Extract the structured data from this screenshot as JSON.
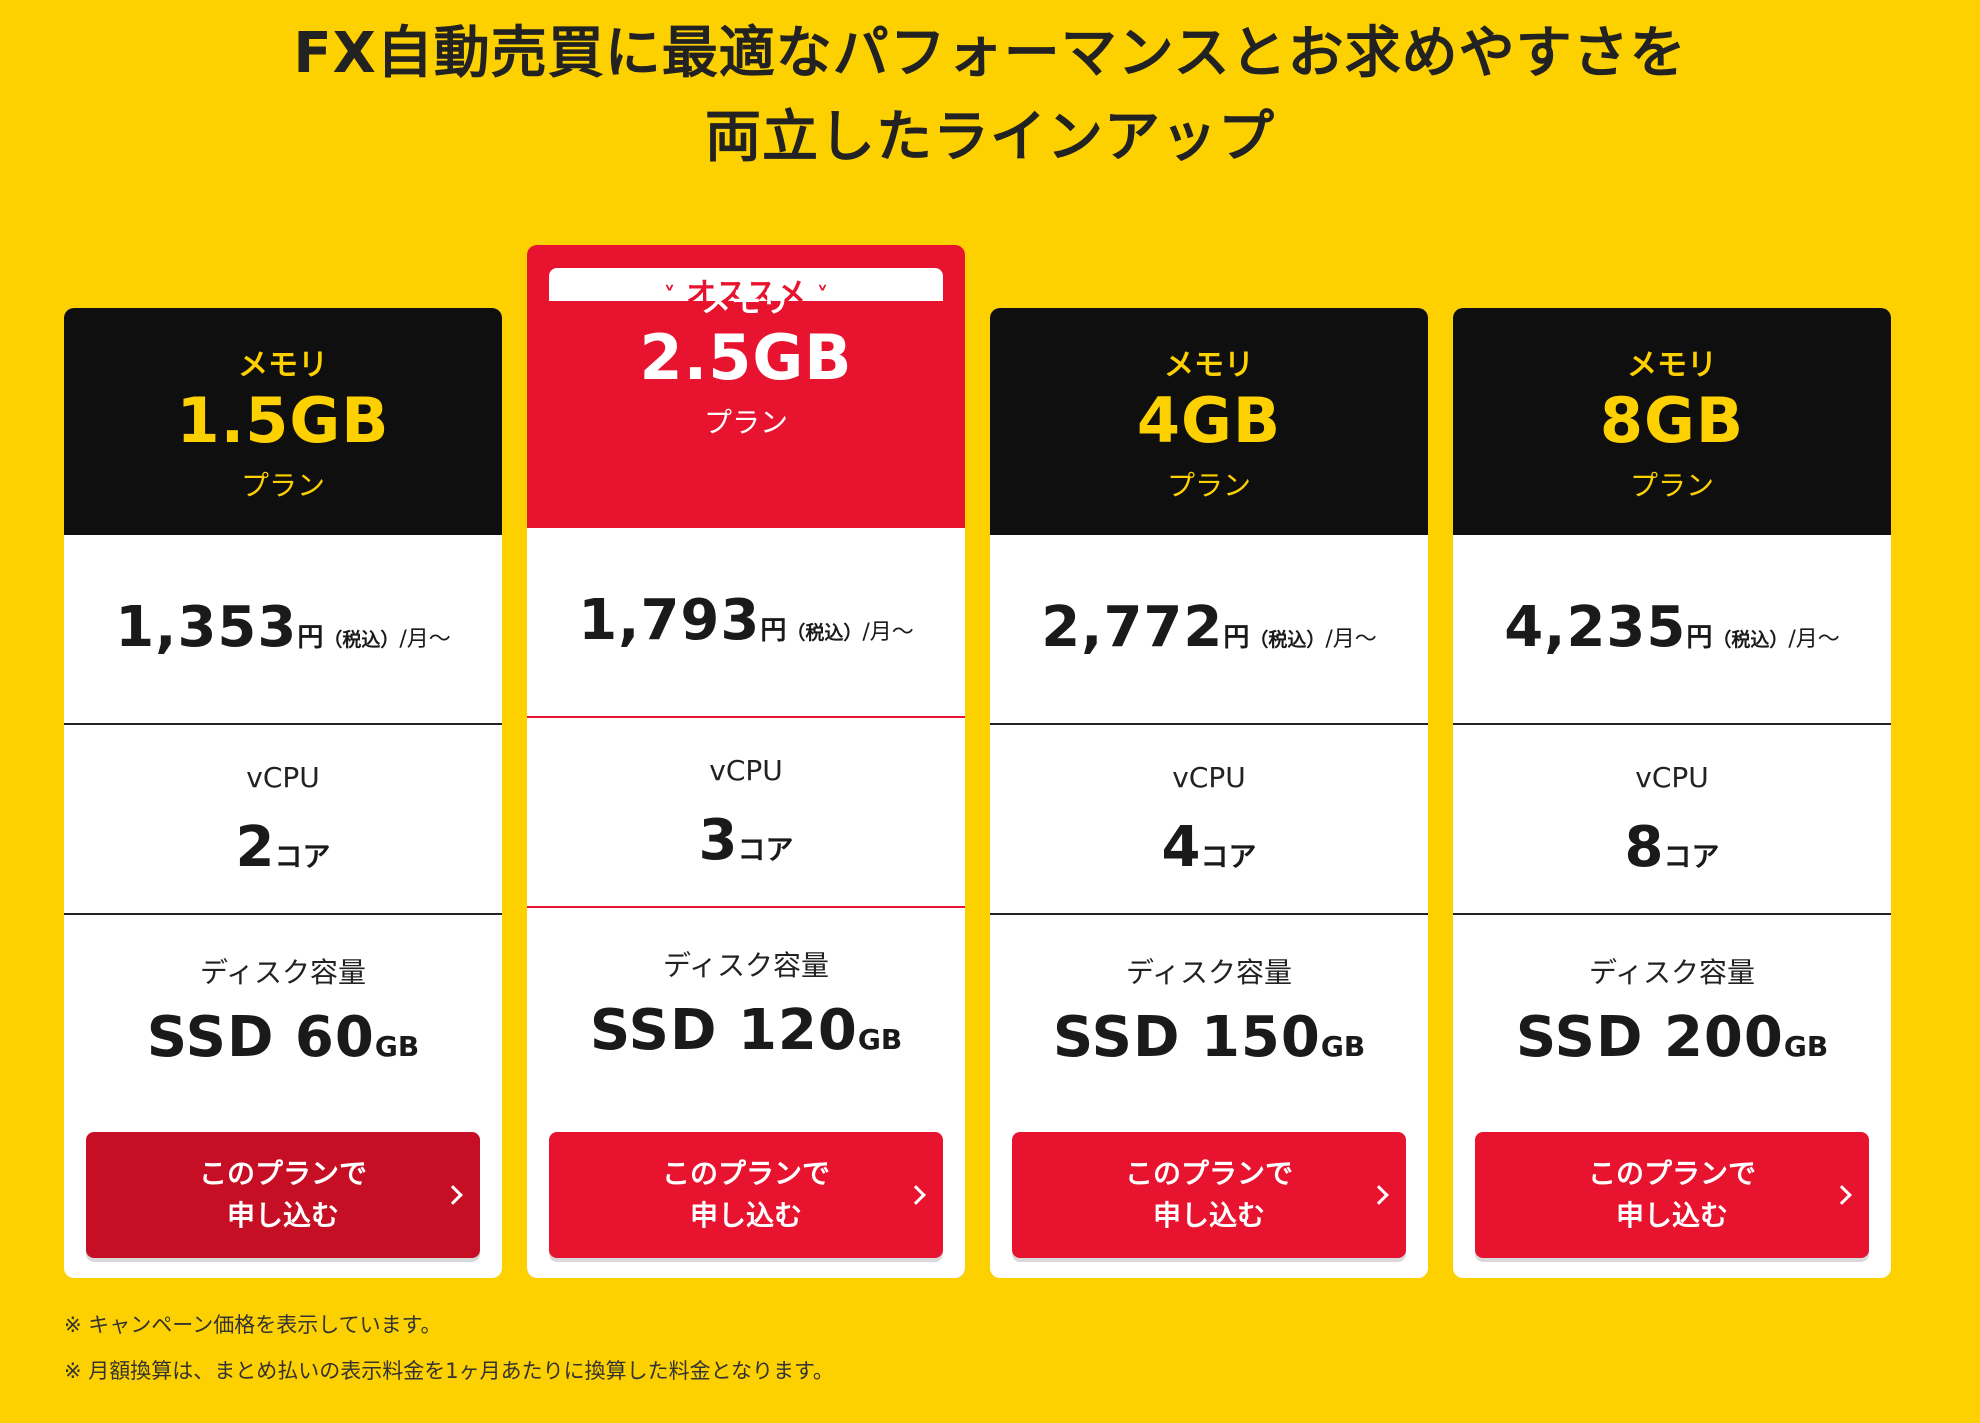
{
  "headline": {
    "line1": "FX自動売買に最適なパフォーマンスとお求めやすさを",
    "line2": "両立したラインアップ"
  },
  "recommend_badge": {
    "label": "オススメ",
    "icon": "double-chevron-down-icon",
    "color": "#e8132f"
  },
  "colors": {
    "background": "#fdd000",
    "accent_red": "#e8132f",
    "card_head_dark": "#0f0f0f",
    "mem_text_yellow": "#fdd000"
  },
  "labels": {
    "vcpu": "vCPU",
    "disk": "ディスク容量"
  },
  "plans": [
    {
      "mem_label": "メモリ",
      "mem_size": "1.5GB",
      "plan_word": "プラン",
      "price": "1,353",
      "yen": "円",
      "tax": "（税込）",
      "per": "/月～",
      "cpu": "2",
      "cpu_unit": "コア",
      "disk": "SSD 60",
      "disk_unit": "GB",
      "button_line1": "このプランで",
      "button_line2": "申し込む",
      "recommended": false
    },
    {
      "mem_label": "メモリ",
      "mem_size": "2.5GB",
      "plan_word": "プラン",
      "price": "1,793",
      "yen": "円",
      "tax": "（税込）",
      "per": "/月～",
      "cpu": "3",
      "cpu_unit": "コア",
      "disk": "SSD 120",
      "disk_unit": "GB",
      "button_line1": "このプランで",
      "button_line2": "申し込む",
      "recommended": true
    },
    {
      "mem_label": "メモリ",
      "mem_size": "4GB",
      "plan_word": "プラン",
      "price": "2,772",
      "yen": "円",
      "tax": "（税込）",
      "per": "/月～",
      "cpu": "4",
      "cpu_unit": "コア",
      "disk": "SSD 150",
      "disk_unit": "GB",
      "button_line1": "このプランで",
      "button_line2": "申し込む",
      "recommended": false
    },
    {
      "mem_label": "メモリ",
      "mem_size": "8GB",
      "plan_word": "プラン",
      "price": "4,235",
      "yen": "円",
      "tax": "（税込）",
      "per": "/月～",
      "cpu": "8",
      "cpu_unit": "コア",
      "disk": "SSD 200",
      "disk_unit": "GB",
      "button_line1": "このプランで",
      "button_line2": "申し込む",
      "recommended": false
    }
  ],
  "notes": [
    "※ キャンペーン価格を表示しています。",
    "※ 月額換算は、まとめ払いの表示料金を1ヶ月あたりに換算した料金となります。"
  ]
}
